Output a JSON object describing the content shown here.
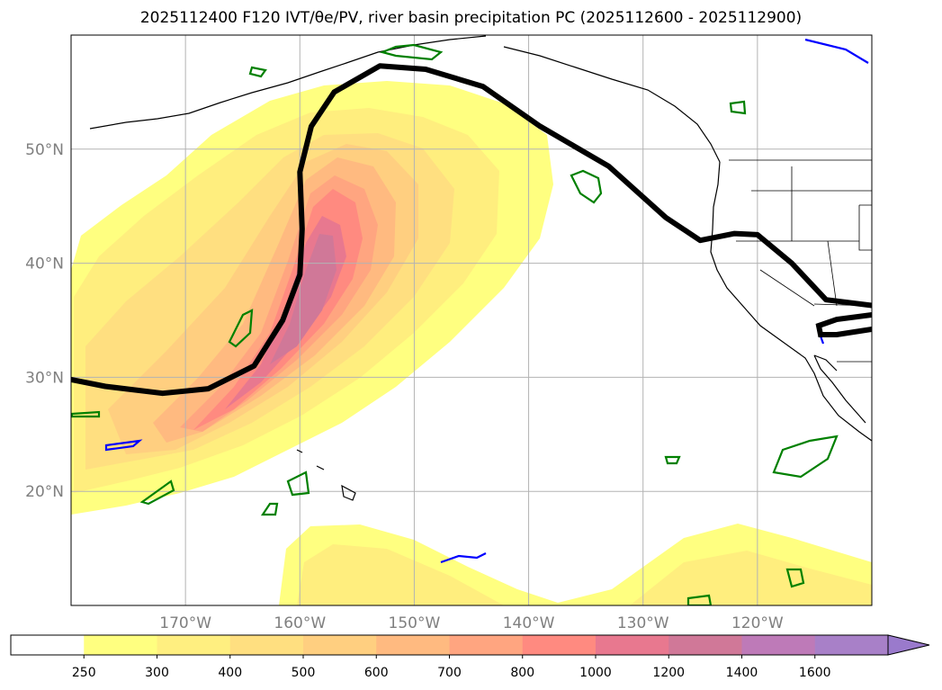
{
  "chart_data": {
    "type": "map",
    "title": "2025112400 F120 IVT/θe/PV, river basin precipitation PC (2025112600 - 2025112900)",
    "ylabels": [
      "50°N",
      "40°N",
      "30°N",
      "20°N"
    ],
    "lat_values": [
      50,
      40,
      30,
      20
    ],
    "xlabels": [
      "170°W",
      "160°W",
      "150°W",
      "140°W",
      "130°W",
      "120°W"
    ],
    "lon_values": [
      -170,
      -160,
      -150,
      -140,
      -130,
      -120
    ],
    "lon_range": [
      -180,
      -110
    ],
    "lat_range": [
      10,
      60
    ],
    "colorbar": {
      "levels": [
        "250",
        "300",
        "400",
        "500",
        "600",
        "700",
        "800",
        "1000",
        "1200",
        "1400",
        "1600"
      ],
      "colors": [
        "#ffffff",
        "#ffff80",
        "#ffef80",
        "#ffdf80",
        "#ffcf80",
        "#ffba80",
        "#ffa580",
        "#ff8a80",
        "#e8788f",
        "#d07898",
        "#be7ab8",
        "#a880c8"
      ],
      "extend": "max"
    },
    "series": [
      {
        "name": "IVT core",
        "peak_lon": -158,
        "peak_lat": 38,
        "max_level": "1400"
      },
      {
        "name": "PV 2 contour (black)",
        "points": [
          [
            -180,
            29.8
          ],
          [
            -177,
            29.2
          ],
          [
            -172,
            28.6
          ],
          [
            -168,
            29
          ],
          [
            -164,
            31
          ],
          [
            -161.5,
            35
          ],
          [
            -160,
            39
          ],
          [
            -159.8,
            43
          ],
          [
            -160,
            48
          ],
          [
            -159,
            52
          ],
          [
            -157,
            55
          ],
          [
            -153,
            57.3
          ],
          [
            -149,
            57
          ],
          [
            -144,
            55.5
          ],
          [
            -139,
            52
          ],
          [
            -133,
            48.5
          ],
          [
            -128,
            44
          ],
          [
            -125,
            42
          ],
          [
            -122,
            42.6
          ],
          [
            -120,
            42.5
          ],
          [
            -117,
            40
          ],
          [
            -114,
            36.8
          ],
          [
            -110,
            36.3
          ]
        ]
      }
    ]
  }
}
